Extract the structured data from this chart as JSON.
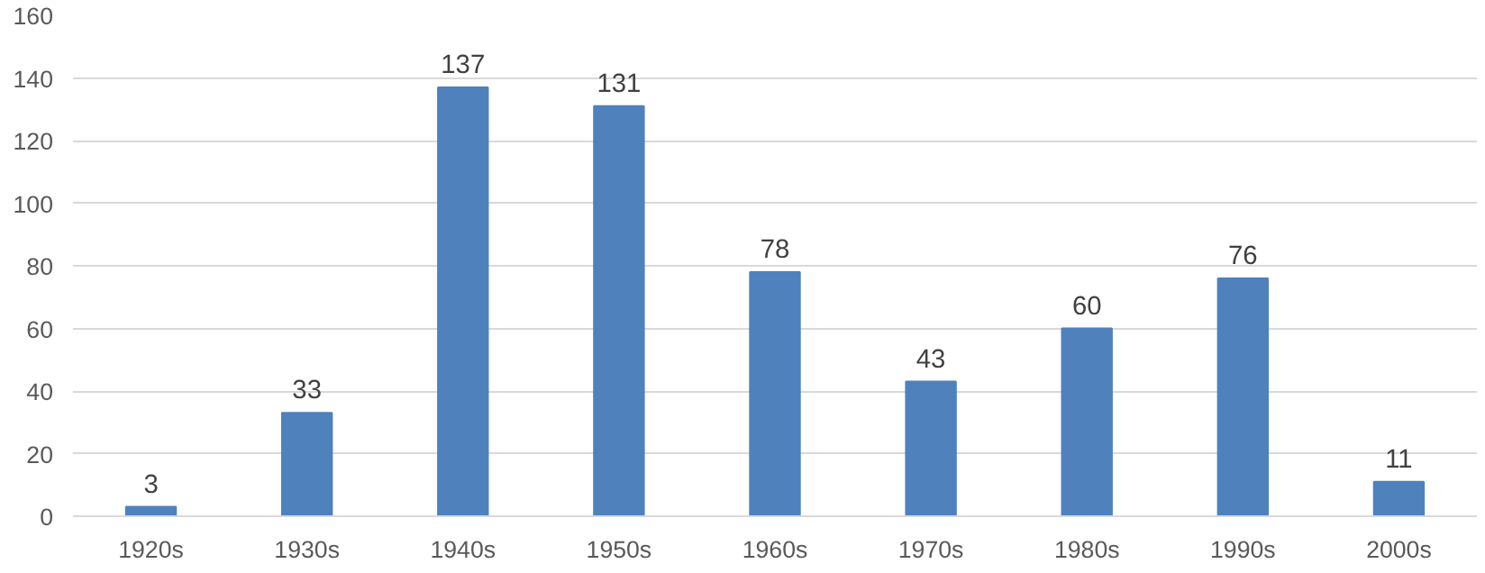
{
  "chart_data": {
    "type": "bar",
    "categories": [
      "1920s",
      "1930s",
      "1940s",
      "1950s",
      "1960s",
      "1970s",
      "1980s",
      "1990s",
      "2000s"
    ],
    "values": [
      3,
      33,
      137,
      131,
      78,
      43,
      60,
      76,
      11
    ],
    "color": "#4f81bd",
    "ylim": [
      0,
      160
    ],
    "yticks": [
      0,
      20,
      40,
      60,
      80,
      100,
      120,
      140,
      160
    ],
    "grid": "y",
    "data_labels": true
  }
}
